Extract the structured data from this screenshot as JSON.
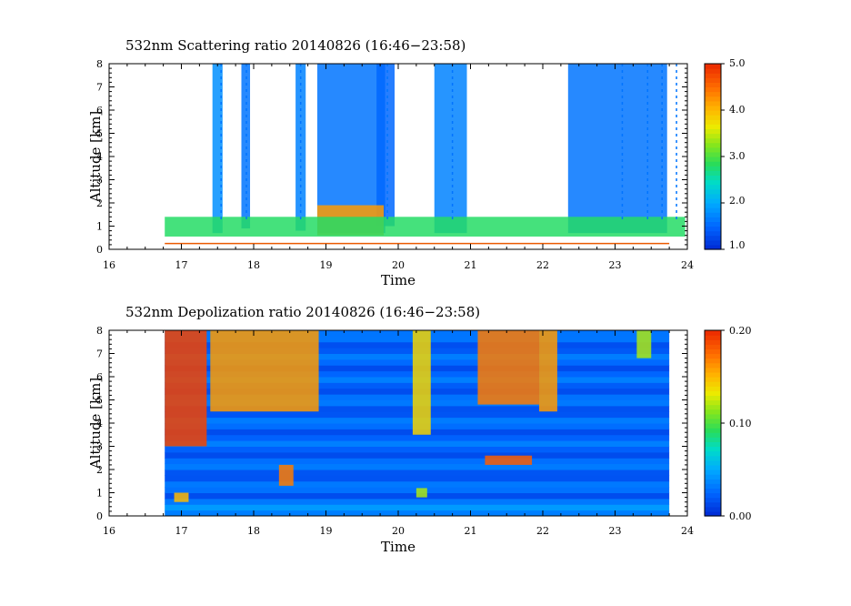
{
  "chart_data": [
    {
      "type": "heatmap",
      "title": "532nm Scattering ratio  20140826 (16:46−23:58)",
      "xlabel": "Time",
      "ylabel": "Altitude [km]",
      "xlim": [
        16,
        24
      ],
      "ylim": [
        0,
        8
      ],
      "x_ticks": [
        "16",
        "17",
        "18",
        "19",
        "20",
        "21",
        "22",
        "23",
        "24"
      ],
      "y_ticks": [
        "0",
        "1",
        "2",
        "3",
        "4",
        "5",
        "6",
        "7",
        "8"
      ],
      "colorbar": {
        "range": [
          1.0,
          5.0
        ],
        "labels": [
          "1.0",
          "2.0",
          "3.0",
          "4.0",
          "5.0"
        ]
      },
      "data_time_range": [
        16.77,
        23.97
      ],
      "features": [
        {
          "label": "cloud column",
          "time": [
            17.43,
            17.57
          ],
          "alt": [
            0.7,
            8.0
          ],
          "value": 1.8
        },
        {
          "label": "cloud column",
          "time": [
            17.83,
            17.95
          ],
          "alt": [
            0.9,
            8.0
          ],
          "value": 1.6
        },
        {
          "label": "cloud column",
          "time": [
            18.58,
            18.72
          ],
          "alt": [
            0.8,
            8.0
          ],
          "value": 1.7
        },
        {
          "label": "cloud layer",
          "time": [
            18.88,
            19.82
          ],
          "alt": [
            0.7,
            8.0
          ],
          "value": 1.6
        },
        {
          "label": "cloud column",
          "time": [
            19.7,
            19.95
          ],
          "alt": [
            1.0,
            8.0
          ],
          "value": 1.5
        },
        {
          "label": "cloud column",
          "time": [
            20.5,
            20.95
          ],
          "alt": [
            0.7,
            8.0
          ],
          "value": 1.7
        },
        {
          "label": "cloud layer",
          "time": [
            22.35,
            23.72
          ],
          "alt": [
            0.7,
            8.0
          ],
          "value": 1.6
        },
        {
          "label": "low cloud base",
          "time": [
            18.88,
            19.8
          ],
          "alt": [
            0.6,
            1.9
          ],
          "value": 4.2
        },
        {
          "label": "boundary layer",
          "time": [
            16.77,
            23.97
          ],
          "alt": [
            0.55,
            1.4
          ],
          "value": 2.8
        }
      ]
    },
    {
      "type": "heatmap",
      "title": "532nm Depolization ratio  20140826 (16:46−23:58)",
      "xlabel": "Time",
      "ylabel": "Altitude [km]",
      "xlim": [
        16,
        24
      ],
      "ylim": [
        0,
        8
      ],
      "x_ticks": [
        "16",
        "17",
        "18",
        "19",
        "20",
        "21",
        "22",
        "23",
        "24"
      ],
      "y_ticks": [
        "0",
        "1",
        "2",
        "3",
        "4",
        "5",
        "6",
        "7",
        "8"
      ],
      "colorbar": {
        "range": [
          0.0,
          0.2
        ],
        "labels": [
          "0.00",
          "0.10",
          "0.20"
        ]
      },
      "data_time_range": [
        16.77,
        23.75
      ],
      "features": [
        {
          "label": "ice cloud",
          "time": [
            16.77,
            17.35
          ],
          "alt": [
            3.0,
            8.0
          ],
          "value": 0.19
        },
        {
          "label": "ice cloud",
          "time": [
            17.4,
            18.9
          ],
          "alt": [
            4.5,
            8.0
          ],
          "value": 0.16
        },
        {
          "label": "ice column",
          "time": [
            20.2,
            20.45
          ],
          "alt": [
            3.5,
            8.0
          ],
          "value": 0.14
        },
        {
          "label": "ice cloud",
          "time": [
            21.1,
            21.95
          ],
          "alt": [
            4.8,
            8.0
          ],
          "value": 0.17
        },
        {
          "label": "ice column",
          "time": [
            21.95,
            22.2
          ],
          "alt": [
            4.5,
            8.0
          ],
          "value": 0.16
        },
        {
          "label": "ice column",
          "time": [
            23.3,
            23.5
          ],
          "alt": [
            6.8,
            8.0
          ],
          "value": 0.12
        },
        {
          "label": "aerosol spot",
          "time": [
            16.9,
            17.1
          ],
          "alt": [
            0.6,
            1.0
          ],
          "value": 0.15
        },
        {
          "label": "aerosol spot",
          "time": [
            18.35,
            18.55
          ],
          "alt": [
            1.3,
            2.2
          ],
          "value": 0.17
        },
        {
          "label": "aerosol spot",
          "time": [
            20.25,
            20.4
          ],
          "alt": [
            0.8,
            1.2
          ],
          "value": 0.12
        },
        {
          "label": "aerosol layer",
          "time": [
            21.2,
            21.85
          ],
          "alt": [
            2.2,
            2.6
          ],
          "value": 0.18
        }
      ]
    }
  ]
}
